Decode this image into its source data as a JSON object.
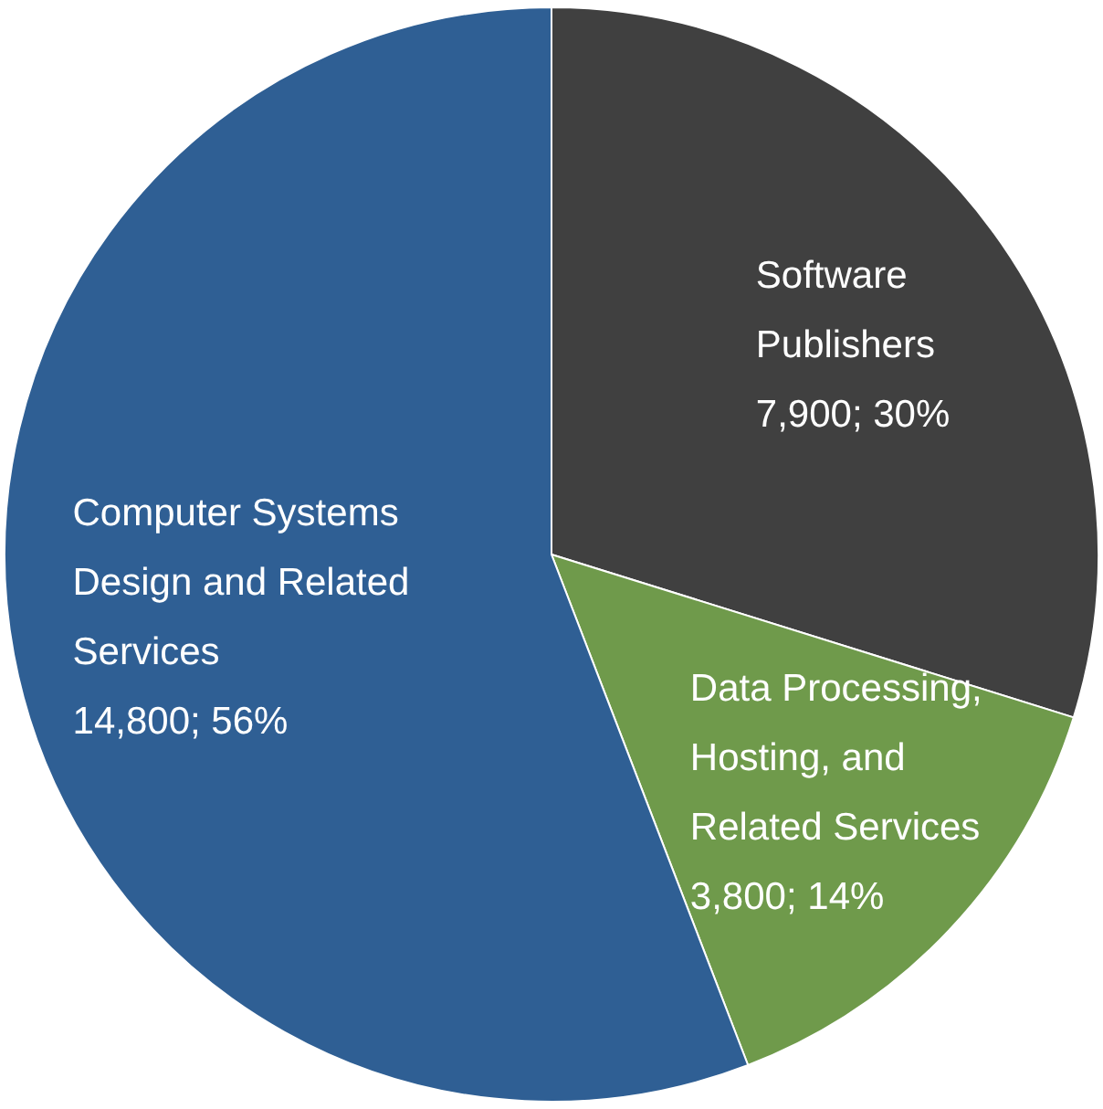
{
  "chart_data": {
    "type": "pie",
    "categories": [
      "Software Publishers",
      "Data Processing, Hosting, and Related Services",
      "Computer Systems Design and Related Services"
    ],
    "values": [
      7900,
      3800,
      14800
    ],
    "colors": [
      "#404040",
      "#6f9a4b",
      "#2f5f94"
    ],
    "value_labels": [
      "7,900; 30%",
      "3,800; 14%",
      "14,800; 56%"
    ],
    "legend": false
  }
}
